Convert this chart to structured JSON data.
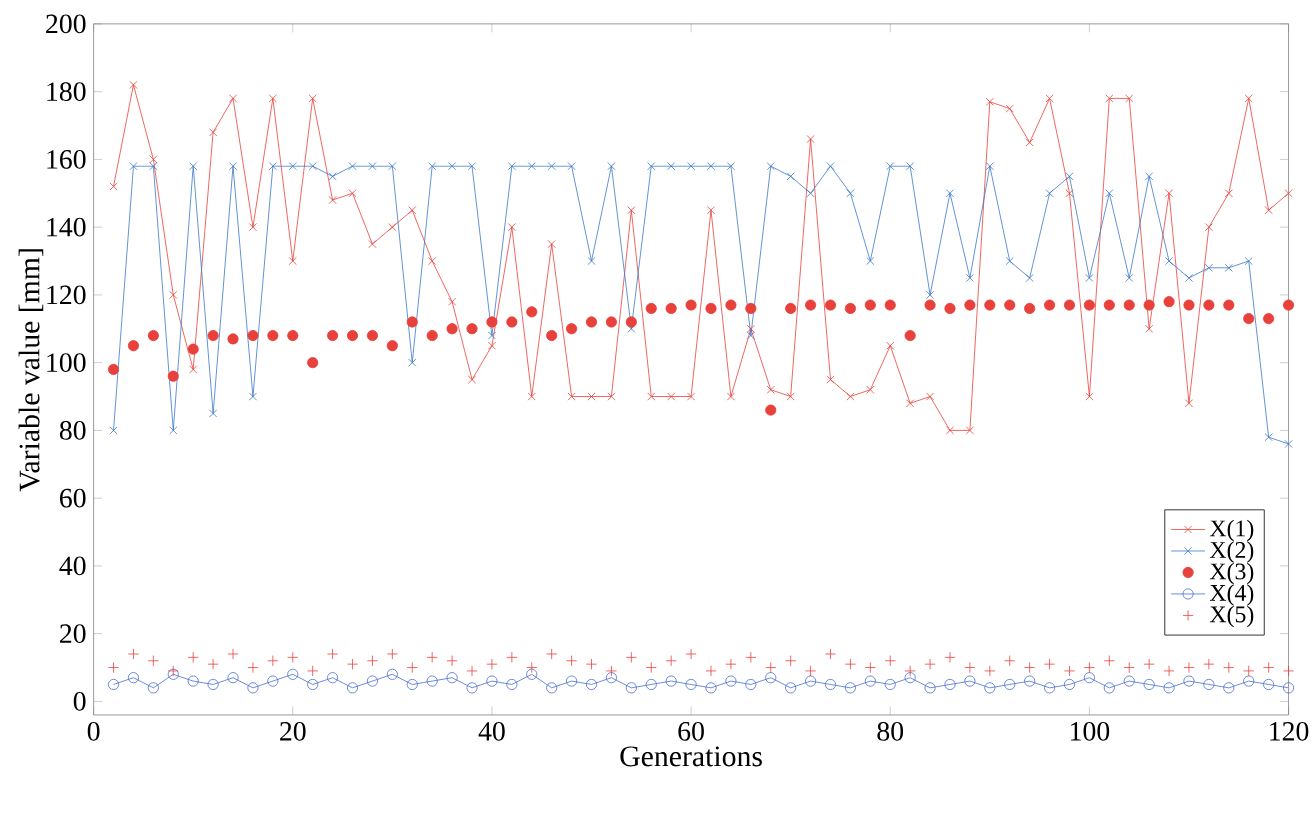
{
  "chart_data": {
    "type": "line",
    "xlabel": "Generations",
    "ylabel": "Variable value  [mm]",
    "x": [
      2,
      4,
      6,
      8,
      10,
      12,
      14,
      16,
      18,
      20,
      22,
      24,
      26,
      28,
      30,
      32,
      34,
      36,
      38,
      40,
      42,
      44,
      46,
      48,
      50,
      52,
      54,
      56,
      58,
      60,
      62,
      64,
      66,
      68,
      70,
      72,
      74,
      76,
      78,
      80,
      82,
      84,
      86,
      88,
      90,
      92,
      94,
      96,
      98,
      100,
      102,
      104,
      106,
      108,
      110,
      112,
      114,
      116,
      118,
      120
    ],
    "series": [
      {
        "name": "X(1)",
        "marker": "cross",
        "color": "#e8403a",
        "values": [
          152,
          182,
          160,
          120,
          98,
          168,
          178,
          140,
          178,
          130,
          178,
          148,
          150,
          135,
          140,
          145,
          130,
          118,
          95,
          105,
          140,
          90,
          135,
          90,
          90,
          90,
          145,
          90,
          90,
          90,
          145,
          90,
          110,
          92,
          90,
          166,
          95,
          90,
          92,
          105,
          88,
          90,
          80,
          80,
          177,
          175,
          165,
          178,
          150,
          90,
          178,
          178,
          110,
          150,
          88,
          140,
          150,
          178,
          145,
          150
        ]
      },
      {
        "name": "X(2)",
        "marker": "cross",
        "color": "#3a78c8",
        "values": [
          80,
          158,
          158,
          80,
          158,
          85,
          158,
          90,
          158,
          158,
          158,
          155,
          158,
          158,
          158,
          100,
          158,
          158,
          158,
          108,
          158,
          158,
          158,
          158,
          130,
          158,
          110,
          158,
          158,
          158,
          158,
          158,
          108,
          158,
          155,
          150,
          158,
          150,
          130,
          158,
          158,
          120,
          150,
          125,
          158,
          130,
          125,
          150,
          155,
          125,
          150,
          125,
          155,
          130,
          125,
          128,
          128,
          130,
          78,
          76
        ]
      },
      {
        "name": "X(3)",
        "type": "scatter",
        "marker": "circle",
        "color": "#e8403a",
        "values": [
          98,
          105,
          108,
          96,
          104,
          108,
          107,
          108,
          108,
          108,
          100,
          108,
          108,
          108,
          105,
          112,
          108,
          110,
          110,
          112,
          112,
          115,
          108,
          110,
          112,
          112,
          112,
          116,
          116,
          117,
          116,
          117,
          116,
          86,
          116,
          117,
          117,
          116,
          117,
          117,
          108,
          117,
          116,
          117,
          117,
          117,
          116,
          117,
          117,
          117,
          117,
          117,
          117,
          118,
          117,
          117,
          117,
          113,
          113,
          117
        ]
      },
      {
        "name": "X(4)",
        "marker": "circle",
        "color": "#4a6ed0",
        "values": [
          5,
          7,
          4,
          8,
          6,
          5,
          7,
          4,
          6,
          8,
          5,
          7,
          4,
          6,
          8,
          5,
          6,
          7,
          4,
          6,
          5,
          8,
          4,
          6,
          5,
          7,
          4,
          5,
          6,
          5,
          4,
          6,
          5,
          7,
          4,
          6,
          5,
          4,
          6,
          5,
          7,
          4,
          5,
          6,
          4,
          5,
          6,
          4,
          5,
          7,
          4,
          6,
          5,
          4,
          6,
          5,
          4,
          6,
          5,
          4
        ]
      },
      {
        "name": "X(5)",
        "type": "scatter",
        "marker": "cross",
        "color": "#e8403a",
        "values": [
          10,
          14,
          12,
          9,
          13,
          11,
          14,
          10,
          12,
          13,
          9,
          14,
          11,
          12,
          14,
          10,
          13,
          12,
          9,
          11,
          13,
          10,
          14,
          12,
          11,
          9,
          13,
          10,
          12,
          14,
          9,
          11,
          13,
          10,
          12,
          9,
          14,
          11,
          10,
          12,
          9,
          11,
          13,
          10,
          9,
          12,
          10,
          11,
          9,
          10,
          12,
          10,
          11,
          9,
          10,
          11,
          10,
          9,
          10,
          9
        ]
      }
    ],
    "xlim": [
      0,
      120
    ],
    "ylim": [
      -4,
      200
    ],
    "xticks": [
      0,
      20,
      40,
      60,
      80,
      100,
      120
    ],
    "yticks": [
      0,
      20,
      40,
      60,
      80,
      100,
      120,
      140,
      160,
      180,
      200
    ],
    "grid": false,
    "legend": "bottom right"
  }
}
